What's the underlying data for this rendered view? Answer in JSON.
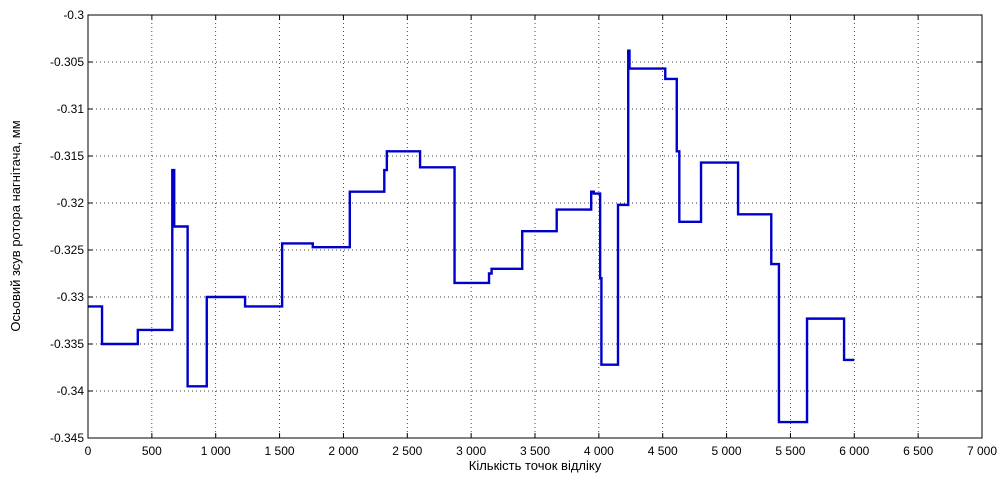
{
  "chart_data": {
    "type": "line",
    "title": "",
    "xlabel": "Кількість точок відліку",
    "ylabel": "Осьовий зсув ротора нагнітача, мм",
    "xlim": [
      0,
      7000
    ],
    "ylim": [
      -0.345,
      -0.3
    ],
    "grid": true,
    "x_ticks": [
      0,
      500,
      1000,
      1500,
      2000,
      2500,
      3000,
      3500,
      4000,
      4500,
      5000,
      5500,
      6000,
      6500,
      7000
    ],
    "x_tick_labels": [
      "0",
      "500",
      "1 000",
      "1 500",
      "2 000",
      "2 500",
      "3 000",
      "3 500",
      "4 000",
      "4 500",
      "5 000",
      "5 500",
      "6 000",
      "6 500",
      "7 000"
    ],
    "y_ticks": [
      -0.3,
      -0.305,
      -0.31,
      -0.315,
      -0.32,
      -0.325,
      -0.33,
      -0.335,
      -0.34,
      -0.345
    ],
    "y_tick_labels": [
      "-0.3",
      "-0.305",
      "-0.31",
      "-0.315",
      "-0.32",
      "-0.325",
      "-0.33",
      "-0.335",
      "-0.34",
      "-0.345"
    ],
    "series": [
      {
        "color": "#0000cc",
        "x": [
          0,
          110,
          110,
          390,
          390,
          660,
          660,
          675,
          675,
          690,
          690,
          780,
          780,
          790,
          790,
          930,
          930,
          1230,
          1230,
          1520,
          1520,
          1760,
          1760,
          1790,
          1790,
          2050,
          2050,
          2320,
          2320,
          2340,
          2340,
          2600,
          2600,
          2870,
          2870,
          2890,
          2890,
          3140,
          3140,
          3160,
          3160,
          3400,
          3400,
          3670,
          3670,
          3940,
          3940,
          3960,
          3960,
          4010,
          4010,
          4020,
          4020,
          4030,
          4030,
          4040,
          4040,
          4150,
          4150,
          4220,
          4220,
          4230,
          4230,
          4240,
          4240,
          4250,
          4250,
          4520,
          4520,
          4610,
          4610,
          4630,
          4630,
          4800,
          4800,
          5090,
          5090,
          5350,
          5350,
          5390,
          5390,
          5410,
          5410,
          5460,
          5460,
          5630,
          5630,
          5900,
          5900,
          5920,
          5920,
          6000
        ],
        "y": [
          -0.331,
          -0.331,
          -0.335,
          -0.335,
          -0.3335,
          -0.3335,
          -0.3165,
          -0.3165,
          -0.3225,
          -0.3225,
          -0.3225,
          -0.3225,
          -0.3395,
          -0.3395,
          -0.3395,
          -0.3395,
          -0.33,
          -0.33,
          -0.331,
          -0.331,
          -0.3243,
          -0.3243,
          -0.3247,
          -0.3247,
          -0.3247,
          -0.3247,
          -0.3188,
          -0.3188,
          -0.3165,
          -0.3165,
          -0.3145,
          -0.3145,
          -0.3162,
          -0.3162,
          -0.3285,
          -0.3285,
          -0.3285,
          -0.3285,
          -0.3275,
          -0.3275,
          -0.327,
          -0.327,
          -0.323,
          -0.323,
          -0.3207,
          -0.3207,
          -0.3188,
          -0.3188,
          -0.319,
          -0.319,
          -0.328,
          -0.328,
          -0.3372,
          -0.3372,
          -0.3372,
          -0.3372,
          -0.3372,
          -0.3372,
          -0.3202,
          -0.3202,
          -0.3202,
          -0.3202,
          -0.3038,
          -0.3038,
          -0.3057,
          -0.3057,
          -0.3057,
          -0.3057,
          -0.3068,
          -0.3068,
          -0.3145,
          -0.3145,
          -0.322,
          -0.322,
          -0.3157,
          -0.3157,
          -0.3212,
          -0.3212,
          -0.3265,
          -0.3265,
          -0.3265,
          -0.3265,
          -0.3433,
          -0.3433,
          -0.3433,
          -0.3433,
          -0.3323,
          -0.3323,
          -0.3323,
          -0.3323,
          -0.3367,
          -0.3367
        ]
      }
    ]
  }
}
